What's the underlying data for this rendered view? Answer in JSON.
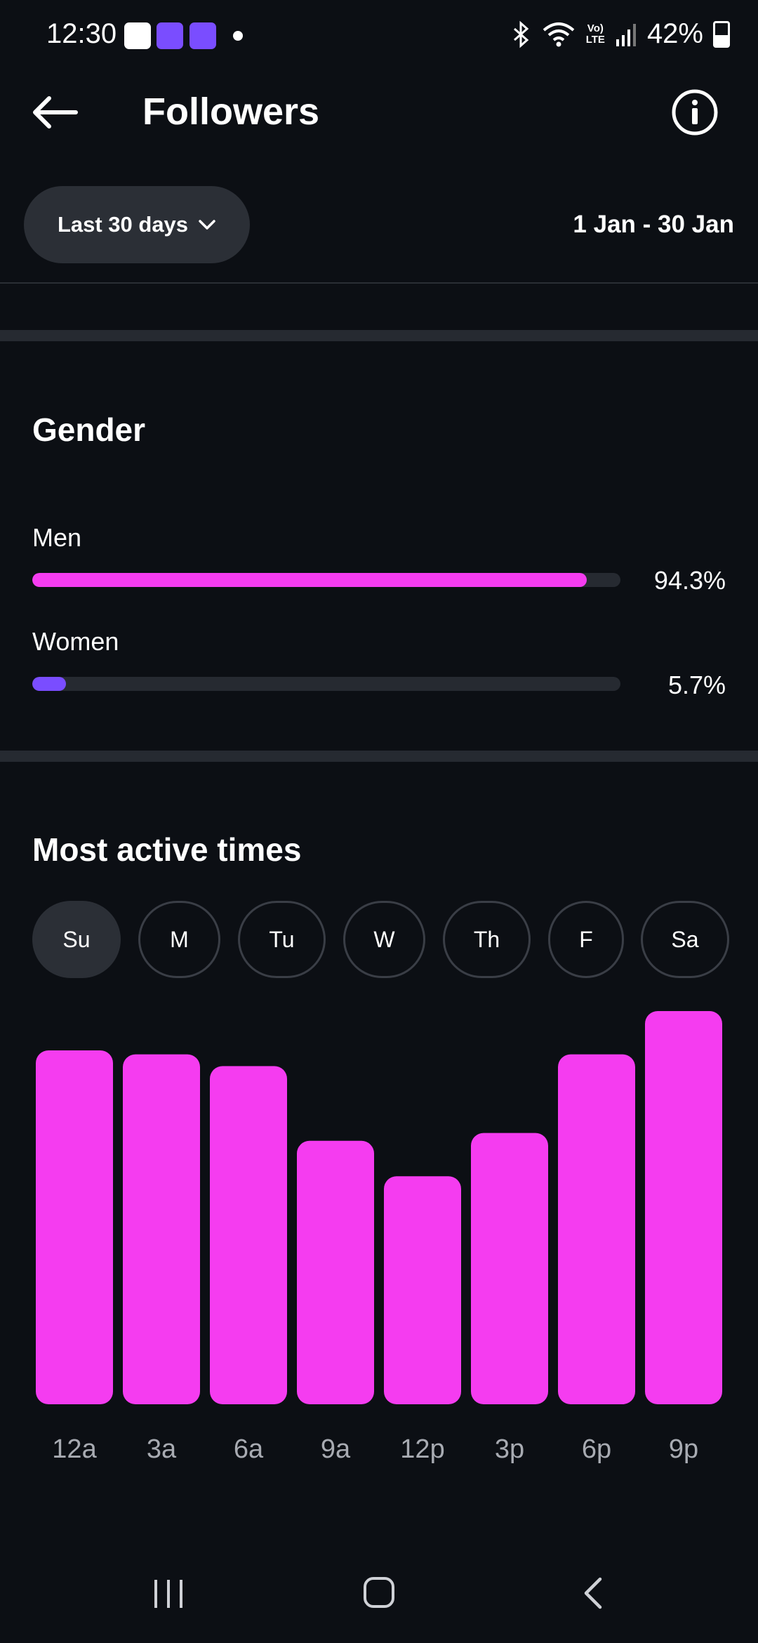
{
  "status_bar": {
    "time": "12:30",
    "battery": "42%",
    "icons": [
      "gallery-icon",
      "app-link-icon",
      "app-link-icon",
      "notification-dot",
      "bluetooth-icon",
      "wifi-icon",
      "volte-icon",
      "signal-icon",
      "battery-icon"
    ],
    "lte_top": "Vo)",
    "lte_bottom": "LTE"
  },
  "header": {
    "title": "Followers",
    "back_icon": "arrow-left-icon",
    "info_icon": "info-icon"
  },
  "filter": {
    "range_label": "Last 30 days",
    "date_range": "1 Jan - 30 Jan"
  },
  "gender": {
    "title": "Gender",
    "items": [
      {
        "label": "Men",
        "value": "94.3%",
        "fraction": 0.943,
        "color": "#f53cf0"
      },
      {
        "label": "Women",
        "value": "5.7%",
        "fraction": 0.057,
        "color": "#7a4dff"
      }
    ]
  },
  "active_times": {
    "title": "Most active times",
    "days": [
      "Su",
      "M",
      "Tu",
      "W",
      "Th",
      "F",
      "Sa"
    ],
    "selected_day": "Su"
  },
  "chart_data": {
    "type": "bar",
    "categories": [
      "12a",
      "3a",
      "6a",
      "9a",
      "12p",
      "3p",
      "6p",
      "9p"
    ],
    "values": [
      90,
      89,
      86,
      67,
      58,
      69,
      89,
      100
    ],
    "ylim": [
      0,
      100
    ],
    "grid": false,
    "color": "#f53cf0"
  },
  "nav_bar": {
    "icons": [
      "recent-apps-icon",
      "home-icon",
      "back-icon"
    ]
  }
}
